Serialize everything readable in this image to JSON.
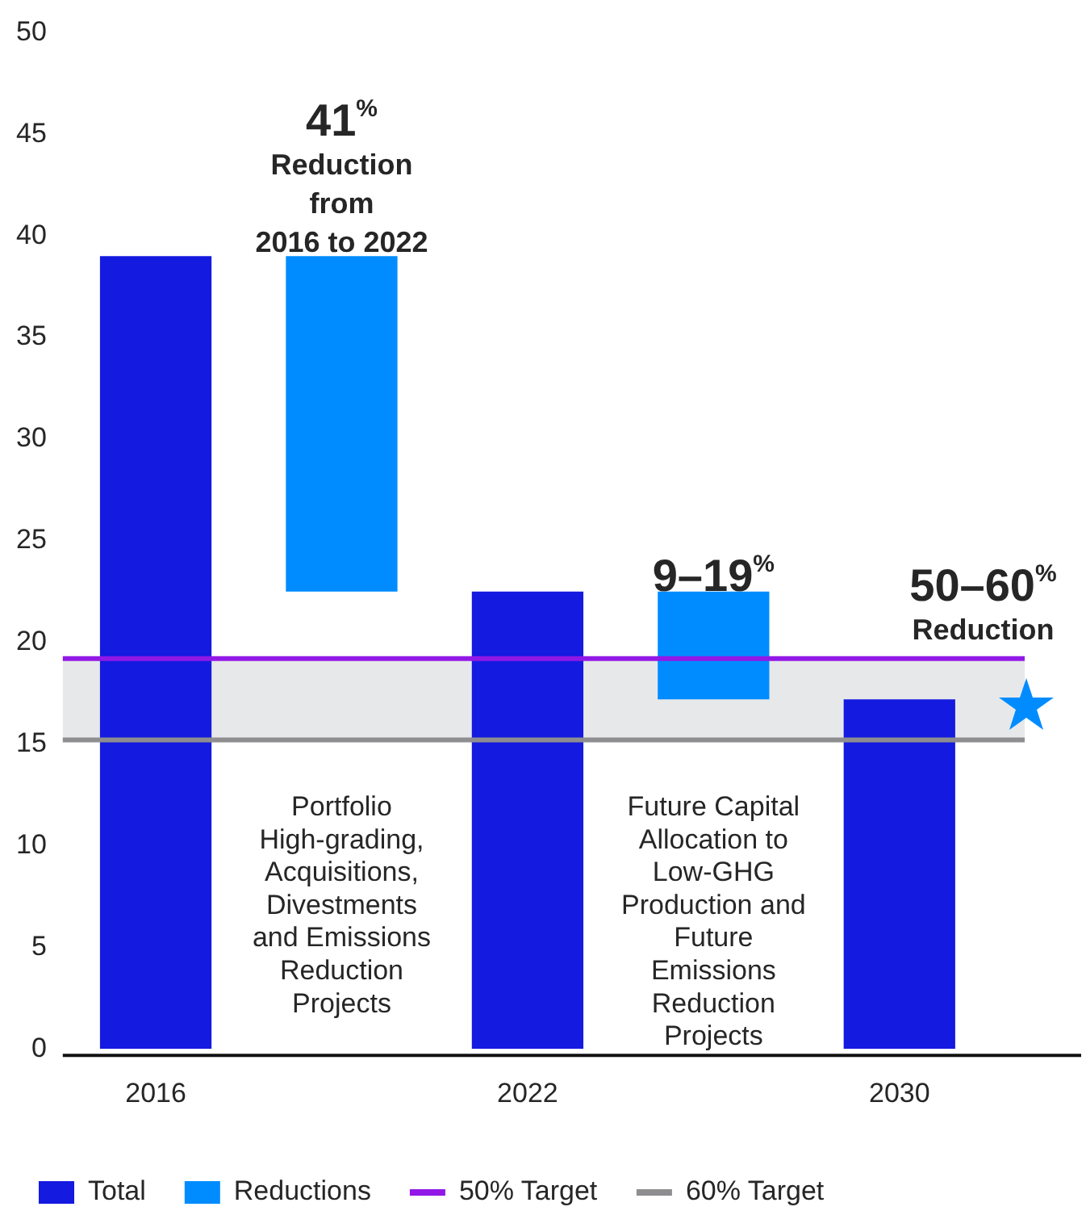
{
  "chart_data": {
    "type": "bar",
    "categories": [
      "2016",
      null,
      "2022",
      null,
      "2030"
    ],
    "series": [
      {
        "name": "Total",
        "color": "#141adf",
        "values": [
          39,
          null,
          22.5,
          null,
          17.2
        ]
      },
      {
        "name": "Reductions",
        "color": "#008cff",
        "values": [
          null,
          16.5,
          null,
          5.3,
          null
        ],
        "base": [
          null,
          22.5,
          null,
          17.2,
          null
        ]
      }
    ],
    "ylim": [
      0,
      50
    ],
    "yticks": [
      0,
      5,
      10,
      15,
      20,
      25,
      30,
      35,
      40,
      45,
      50
    ],
    "grid": false,
    "legend": "bottom",
    "ref_lines": [
      {
        "axis": "y",
        "value": 19.2,
        "label": "50% Target",
        "color": "#9118e6"
      },
      {
        "axis": "y",
        "value": 15.2,
        "label": "60% Target",
        "color": "#8e8e90"
      }
    ],
    "bands": [
      {
        "axis": "y",
        "from": 15.2,
        "to": 19.2,
        "color": "#e7e8ea"
      }
    ],
    "annotations": [
      "41$^{%}$",
      "Reduction\nfrom\n2016 to 2022",
      "Portfolio\nHigh-grading,\nAcquisitions,\nDivestments\nand Emissions\nReduction\nProjects",
      "9–19$^{%}$",
      "Future Capital\nAllocation to\nLow-GHG\nProduction and\nFuture\nEmissions\nReduction\nProjects",
      "50–60$^{%}$",
      "Reduction"
    ]
  }
}
